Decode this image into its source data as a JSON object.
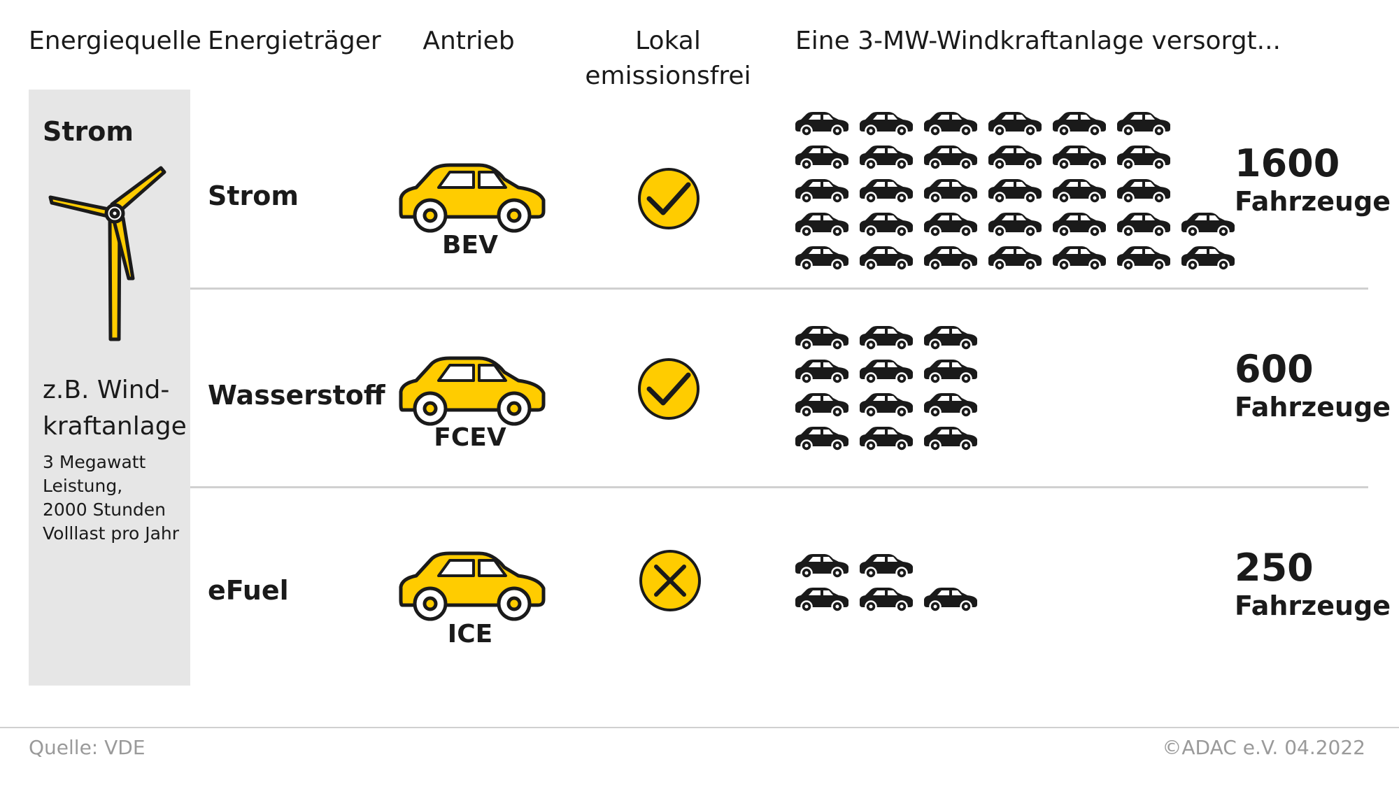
{
  "chart_data": {
    "type": "table",
    "headers": {
      "energy_source": "Energiequelle",
      "energy_carrier": "Energieträger",
      "drive": "Antrieb",
      "emission_free_line1": "Lokal",
      "emission_free_line2": "emissionsfrei",
      "supply": "Eine 3-MW-Windkraftanlage versorgt..."
    },
    "source_panel": {
      "title": "Strom",
      "name_line1": "z.B. Wind-",
      "name_line2": "kraftanlage",
      "detail_lines": [
        "3 Megawatt",
        "Leistung,",
        "2000 Stunden",
        "Volllast pro Jahr"
      ]
    },
    "rows": [
      {
        "carrier": "Strom",
        "drive": "BEV",
        "emission_free": true,
        "vehicles": 1600,
        "unit": "Fahrzeuge",
        "icon_rows": [
          6,
          6,
          6,
          7,
          7
        ]
      },
      {
        "carrier": "Wasserstoff",
        "drive": "FCEV",
        "emission_free": true,
        "vehicles": 600,
        "unit": "Fahrzeuge",
        "icon_rows": [
          3,
          3,
          3,
          3
        ]
      },
      {
        "carrier": "eFuel",
        "drive": "ICE",
        "emission_free": false,
        "vehicles": 250,
        "unit": "Fahrzeuge",
        "icon_rows": [
          2,
          3
        ]
      }
    ]
  },
  "footer": {
    "source": "Quelle: VDE",
    "copyright": "©ADAC e.V.  04.2022"
  },
  "colors": {
    "accent": "#ffcc00",
    "dark": "#1a1a1a",
    "panel": "#e6e6e6",
    "divider": "#d0d0d0",
    "footer_text": "#9a9a9a"
  },
  "icons": {
    "source": "wind-turbine-icon",
    "car": "car-icon",
    "yes": "checkmark-circle-icon",
    "no": "cross-circle-icon"
  }
}
